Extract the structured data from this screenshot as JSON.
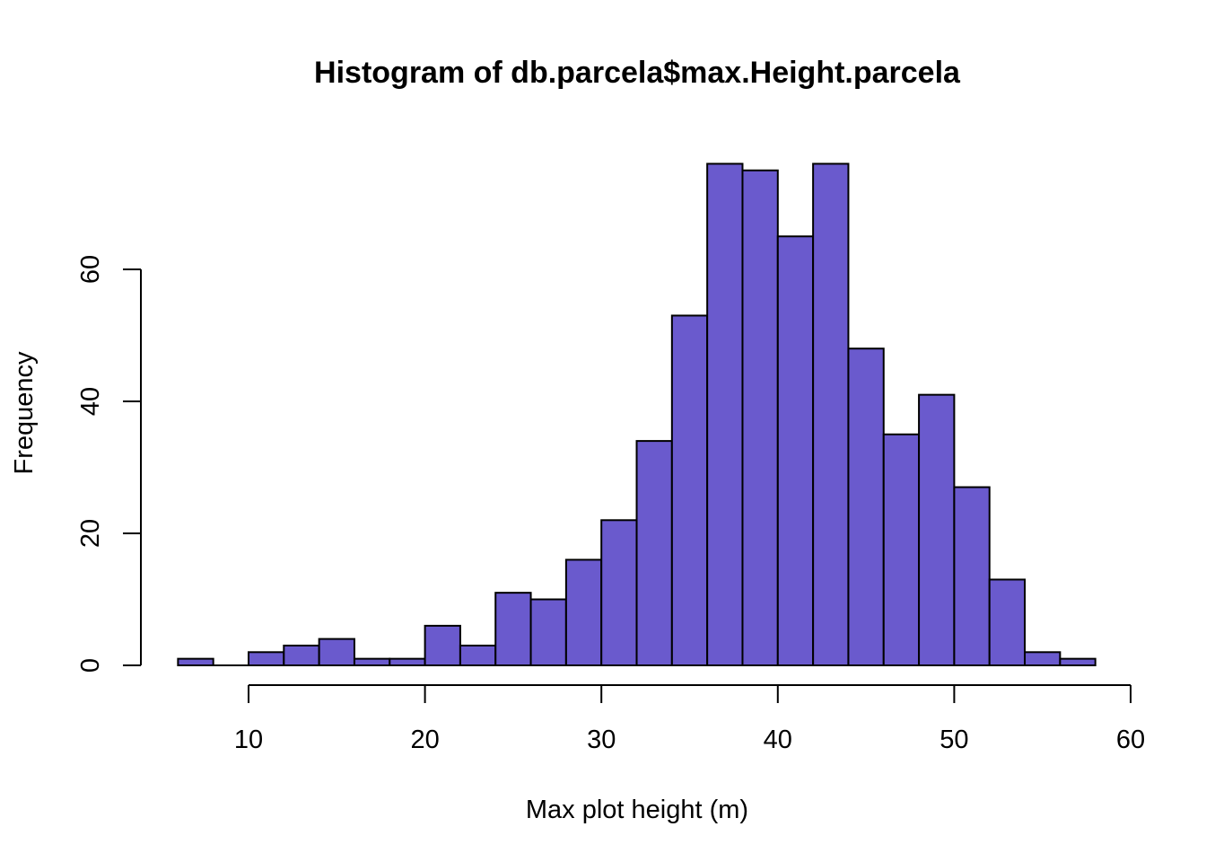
{
  "chart_data": {
    "type": "bar",
    "title": "Histogram of db.parcela$max.Height.parcela",
    "xlabel": "Max plot height (m)",
    "ylabel": "Frequency",
    "bar_color": "#6A5ACD",
    "bin_width": 2,
    "bins": [
      {
        "start": 6,
        "end": 8,
        "count": 1
      },
      {
        "start": 8,
        "end": 10,
        "count": 0
      },
      {
        "start": 10,
        "end": 12,
        "count": 2
      },
      {
        "start": 12,
        "end": 14,
        "count": 3
      },
      {
        "start": 14,
        "end": 16,
        "count": 4
      },
      {
        "start": 16,
        "end": 18,
        "count": 1
      },
      {
        "start": 18,
        "end": 20,
        "count": 1
      },
      {
        "start": 20,
        "end": 22,
        "count": 6
      },
      {
        "start": 22,
        "end": 24,
        "count": 3
      },
      {
        "start": 24,
        "end": 26,
        "count": 11
      },
      {
        "start": 26,
        "end": 28,
        "count": 10
      },
      {
        "start": 28,
        "end": 30,
        "count": 16
      },
      {
        "start": 30,
        "end": 32,
        "count": 22
      },
      {
        "start": 32,
        "end": 34,
        "count": 34
      },
      {
        "start": 34,
        "end": 36,
        "count": 53
      },
      {
        "start": 36,
        "end": 38,
        "count": 76
      },
      {
        "start": 38,
        "end": 40,
        "count": 75
      },
      {
        "start": 40,
        "end": 42,
        "count": 65
      },
      {
        "start": 42,
        "end": 44,
        "count": 76
      },
      {
        "start": 44,
        "end": 46,
        "count": 48
      },
      {
        "start": 46,
        "end": 48,
        "count": 35
      },
      {
        "start": 48,
        "end": 50,
        "count": 41
      },
      {
        "start": 50,
        "end": 52,
        "count": 27
      },
      {
        "start": 52,
        "end": 54,
        "count": 13
      },
      {
        "start": 54,
        "end": 56,
        "count": 2
      },
      {
        "start": 56,
        "end": 58,
        "count": 1
      }
    ],
    "xlim": [
      6,
      58
    ],
    "ylim": [
      0,
      76
    ],
    "x_ticks": [
      10,
      20,
      30,
      40,
      50,
      60
    ],
    "y_ticks": [
      0,
      20,
      40,
      60
    ],
    "grid": false,
    "legend": "none"
  }
}
